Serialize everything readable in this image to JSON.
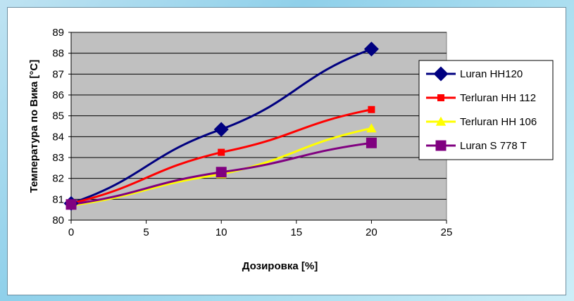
{
  "chart_data": {
    "type": "line",
    "xlabel": "Дозировка [%]",
    "ylabel": "Температура по Вика [°C]",
    "xlim": [
      0,
      25
    ],
    "ylim": [
      80,
      89
    ],
    "x_ticks": [
      0,
      5,
      10,
      15,
      20,
      25
    ],
    "y_ticks": [
      80,
      81,
      82,
      83,
      84,
      85,
      86,
      87,
      88,
      89
    ],
    "grid": "horizontal",
    "plot_background": "#c0c0c0",
    "legend_position": "right",
    "series": [
      {
        "name": "Luran HH120",
        "color": "#000080",
        "marker": "diamond",
        "x": [
          0,
          10,
          20
        ],
        "y": [
          80.8,
          84.35,
          88.2
        ]
      },
      {
        "name": "Terluran HH 112",
        "color": "#ff0000",
        "marker": "square",
        "x": [
          0,
          10,
          20
        ],
        "y": [
          80.8,
          83.25,
          85.3
        ]
      },
      {
        "name": "Terluran HH 106",
        "color": "#ffff00",
        "marker": "triangle",
        "x": [
          0,
          10,
          20
        ],
        "y": [
          80.7,
          82.2,
          84.4
        ]
      },
      {
        "name": "Luran S 778 T",
        "color": "#800080",
        "marker": "square",
        "x": [
          0,
          10,
          20
        ],
        "y": [
          80.75,
          82.3,
          83.7
        ]
      }
    ]
  }
}
